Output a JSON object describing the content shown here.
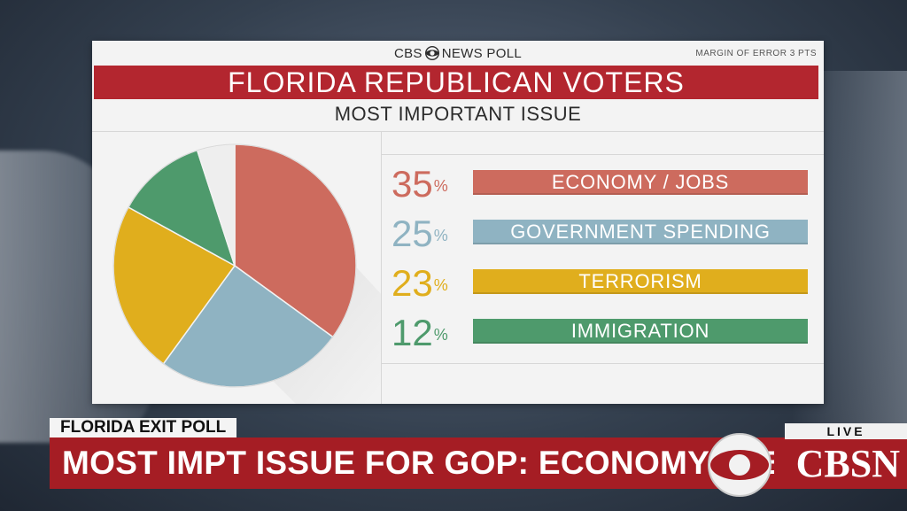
{
  "header": {
    "network_left": "CBS",
    "network_right": "NEWS POLL",
    "margin_of_error": "MARGIN OF ERROR 3 PTS"
  },
  "chart_data": {
    "type": "pie",
    "title": "FLORIDA REPUBLICAN VOTERS",
    "subtitle": "MOST IMPORTANT ISSUE",
    "unit": "%",
    "slices": [
      {
        "label": "ECONOMY / JOBS",
        "value": 35,
        "display": "35",
        "color": "#cd6b5e"
      },
      {
        "label": "GOVERNMENT SPENDING",
        "value": 25,
        "display": "25",
        "color": "#8fb3c2"
      },
      {
        "label": "TERRORISM",
        "value": 23,
        "display": "23",
        "color": "#e0ae1d"
      },
      {
        "label": "IMMIGRATION",
        "value": 12,
        "display": "12",
        "color": "#4e9a6c"
      },
      {
        "label": "",
        "value": 5,
        "display": "",
        "color": "#eeeeee"
      }
    ]
  },
  "lower_third": {
    "tag": "FLORIDA EXIT POLL",
    "headline": "MOST IMPT ISSUE FOR GOP: ECONOMY/JOBS",
    "live": "LIVE",
    "brand": "CBSN"
  },
  "colors": {
    "title_bar": "#b3262f",
    "headline_bar": "#a51d24"
  }
}
